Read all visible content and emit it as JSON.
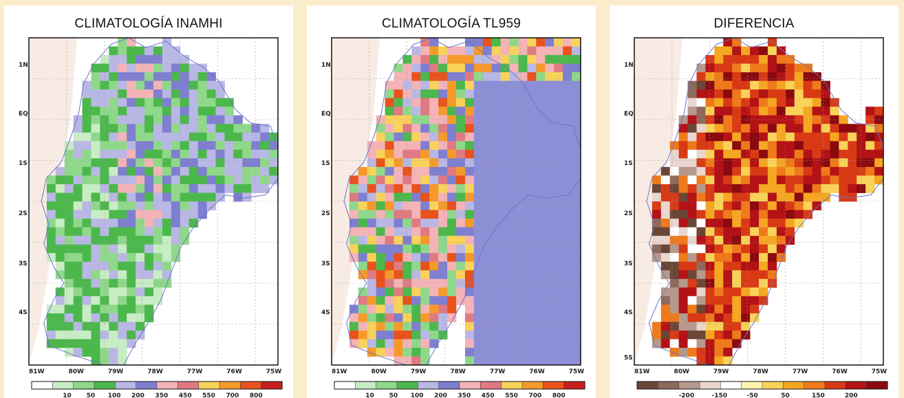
{
  "panels": [
    {
      "id": "inamhi",
      "title": "CLIMATOLOGÍA INAMHI",
      "lat_labels": [
        "1N",
        "EQ",
        "1S",
        "2S",
        "3S",
        "4S"
      ],
      "lon_labels": [
        "81W",
        "80W",
        "79W",
        "78W",
        "77W",
        "76W",
        "75W"
      ],
      "colorbar_labels": [
        "10",
        "50",
        "100",
        "200",
        "350",
        "450",
        "550",
        "700",
        "800"
      ],
      "colorbar_colors": [
        "#ffffff",
        "#c8ecc4",
        "#8fd88a",
        "#4cb84c",
        "#b9b7e4",
        "#7f7fd0",
        "#f4b3b6",
        "#e07a82",
        "#f9d25a",
        "#f59a2a",
        "#e8521c",
        "#c81e1e"
      ]
    },
    {
      "id": "tl959",
      "title": "CLIMATOLOGÍA TL959",
      "lat_labels": [
        "1N",
        "EQ",
        "1S",
        "2S",
        "3S",
        "4S"
      ],
      "lon_labels": [
        "81W",
        "80W",
        "79W",
        "78W",
        "77W",
        "76W",
        "75W"
      ],
      "colorbar_labels": [
        "10",
        "50",
        "100",
        "200",
        "350",
        "450",
        "550",
        "700",
        "800"
      ],
      "colorbar_colors": [
        "#ffffff",
        "#c8ecc4",
        "#8fd88a",
        "#4cb84c",
        "#b9b7e4",
        "#7f7fd0",
        "#f4b3b6",
        "#e07a82",
        "#f9d25a",
        "#f59a2a",
        "#e8521c",
        "#c81e1e"
      ]
    },
    {
      "id": "diferencia",
      "title": "DIFERENCIA",
      "lat_labels": [
        "1N",
        "EQ",
        "1S",
        "2S",
        "3S",
        "4S",
        "5S"
      ],
      "lon_labels": [
        "81W",
        "80W",
        "79W",
        "78W",
        "77W",
        "76W",
        "75W"
      ],
      "colorbar_labels": [
        "-200",
        "-150",
        "-50",
        "50",
        "150",
        "200"
      ],
      "colorbar_colors": [
        "#6b4636",
        "#8e6a5c",
        "#b7988c",
        "#e8d6cf",
        "#ffffff",
        "#fff3b0",
        "#f9d25a",
        "#f5a623",
        "#ee7a1c",
        "#d93a16",
        "#b31216",
        "#8a0a10"
      ]
    }
  ]
}
